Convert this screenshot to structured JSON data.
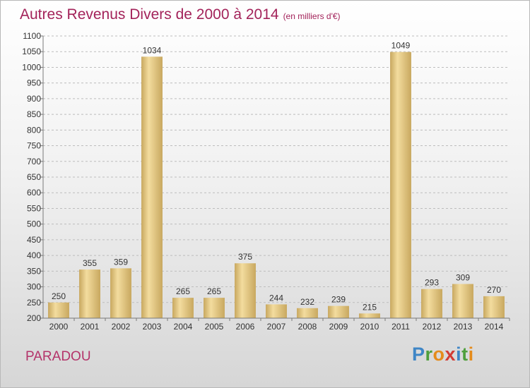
{
  "header": {
    "title": "Autres Revenus Divers de 2000 à 2014",
    "unit": "(en milliers d'€)"
  },
  "footer": {
    "town": "PARADOU",
    "logo_letters": [
      "P",
      "r",
      "o",
      "x",
      "i",
      "t",
      "i"
    ]
  },
  "chart_data": {
    "type": "bar",
    "title": "Autres Revenus Divers de 2000 à 2014",
    "subtitle": "(en milliers d'€)",
    "categories": [
      "2000",
      "2001",
      "2002",
      "2003",
      "2004",
      "2005",
      "2006",
      "2007",
      "2008",
      "2009",
      "2010",
      "2011",
      "2012",
      "2013",
      "2014"
    ],
    "values": [
      250,
      355,
      359,
      1034,
      265,
      265,
      375,
      244,
      232,
      239,
      215,
      1049,
      293,
      309,
      270
    ],
    "ylim": [
      200,
      1100
    ],
    "yticks": [
      200,
      250,
      300,
      350,
      400,
      450,
      500,
      550,
      600,
      650,
      700,
      750,
      800,
      850,
      900,
      950,
      1000,
      1050,
      1100
    ],
    "grid": true,
    "legend": "none",
    "colors": {
      "bar_light": "#f3dc9e",
      "bar_dark": "#c8a85f",
      "grid": "#bdbdbd",
      "axis": "#7a7a7a"
    }
  }
}
